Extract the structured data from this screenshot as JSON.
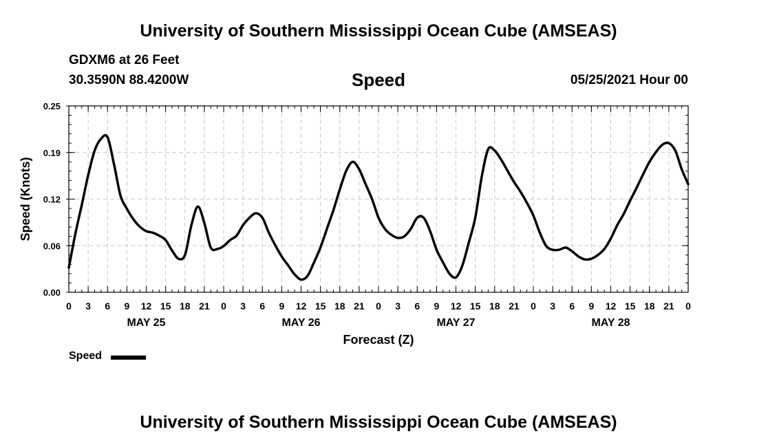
{
  "header": {
    "title_top": "University of Southern Mississippi Ocean Cube (AMSEAS)",
    "station": "GDXM6 at 26 Feet",
    "location": "30.3590N  88.4200W",
    "chart_title": "Speed",
    "datetime": "05/25/2021 Hour 00"
  },
  "footer": {
    "title_bottom": "University of Southern Mississippi Ocean Cube (AMSEAS)"
  },
  "legend": {
    "label": "Speed",
    "color": "#000000"
  },
  "chart_data": {
    "type": "line",
    "title": "Speed",
    "xlabel": "Forecast (Z)",
    "ylabel": "Speed (Knots)",
    "ylim": [
      0,
      0.25
    ],
    "xlim": [
      0,
      96
    ],
    "y_ticks": [
      "0.00",
      "0.06",
      "0.12",
      "0.19",
      "0.25"
    ],
    "y_tick_values": [
      0,
      0.0625,
      0.125,
      0.1875,
      0.25
    ],
    "x_ticks": [
      {
        "hour": 0,
        "label": "0"
      },
      {
        "hour": 3,
        "label": "3"
      },
      {
        "hour": 6,
        "label": "6"
      },
      {
        "hour": 9,
        "label": "9"
      },
      {
        "hour": 12,
        "label": "12"
      },
      {
        "hour": 15,
        "label": "15"
      },
      {
        "hour": 18,
        "label": "18"
      },
      {
        "hour": 21,
        "label": "21"
      },
      {
        "hour": 24,
        "label": "0"
      },
      {
        "hour": 27,
        "label": "3"
      },
      {
        "hour": 30,
        "label": "6"
      },
      {
        "hour": 33,
        "label": "9"
      },
      {
        "hour": 36,
        "label": "12"
      },
      {
        "hour": 39,
        "label": "15"
      },
      {
        "hour": 42,
        "label": "18"
      },
      {
        "hour": 45,
        "label": "21"
      },
      {
        "hour": 48,
        "label": "0"
      },
      {
        "hour": 51,
        "label": "3"
      },
      {
        "hour": 54,
        "label": "6"
      },
      {
        "hour": 57,
        "label": "9"
      },
      {
        "hour": 60,
        "label": "12"
      },
      {
        "hour": 63,
        "label": "15"
      },
      {
        "hour": 66,
        "label": "18"
      },
      {
        "hour": 69,
        "label": "21"
      },
      {
        "hour": 72,
        "label": "0"
      },
      {
        "hour": 75,
        "label": "3"
      },
      {
        "hour": 78,
        "label": "6"
      },
      {
        "hour": 81,
        "label": "9"
      },
      {
        "hour": 84,
        "label": "12"
      },
      {
        "hour": 87,
        "label": "15"
      },
      {
        "hour": 90,
        "label": "18"
      },
      {
        "hour": 93,
        "label": "21"
      },
      {
        "hour": 96,
        "label": "0"
      }
    ],
    "day_labels": [
      {
        "hour": 12,
        "label": "MAY 25"
      },
      {
        "hour": 36,
        "label": "MAY 26"
      },
      {
        "hour": 60,
        "label": "MAY 27"
      },
      {
        "hour": 84,
        "label": "MAY 28"
      }
    ],
    "grid": true,
    "series": [
      {
        "name": "Speed",
        "x": [
          0,
          1,
          2,
          3,
          4,
          5,
          6,
          7,
          8,
          9,
          10,
          11,
          12,
          13,
          14,
          15,
          16,
          17,
          18,
          19,
          20,
          21,
          22,
          23,
          24,
          25,
          26,
          27,
          28,
          29,
          30,
          31,
          32,
          33,
          34,
          35,
          36,
          37,
          38,
          39,
          40,
          41,
          42,
          43,
          44,
          45,
          46,
          47,
          48,
          49,
          50,
          51,
          52,
          53,
          54,
          55,
          56,
          57,
          58,
          59,
          60,
          61,
          62,
          63,
          64,
          65,
          66,
          67,
          68,
          69,
          70,
          71,
          72,
          73,
          74,
          75,
          76,
          77,
          78,
          79,
          80,
          81,
          82,
          83,
          84,
          85,
          86,
          87,
          88,
          89,
          90,
          91,
          92,
          93,
          94,
          95,
          96
        ],
        "values": [
          0.033,
          0.078,
          0.117,
          0.157,
          0.19,
          0.206,
          0.208,
          0.172,
          0.13,
          0.112,
          0.098,
          0.088,
          0.082,
          0.08,
          0.076,
          0.07,
          0.056,
          0.045,
          0.05,
          0.09,
          0.115,
          0.093,
          0.06,
          0.058,
          0.062,
          0.07,
          0.076,
          0.09,
          0.1,
          0.106,
          0.1,
          0.08,
          0.063,
          0.048,
          0.036,
          0.024,
          0.017,
          0.022,
          0.04,
          0.06,
          0.085,
          0.11,
          0.138,
          0.163,
          0.175,
          0.165,
          0.145,
          0.125,
          0.1,
          0.085,
          0.077,
          0.073,
          0.075,
          0.085,
          0.1,
          0.1,
          0.082,
          0.057,
          0.04,
          0.025,
          0.02,
          0.036,
          0.067,
          0.1,
          0.155,
          0.192,
          0.19,
          0.178,
          0.163,
          0.148,
          0.135,
          0.12,
          0.103,
          0.08,
          0.062,
          0.057,
          0.057,
          0.06,
          0.055,
          0.048,
          0.044,
          0.045,
          0.05,
          0.058,
          0.072,
          0.09,
          0.105,
          0.123,
          0.14,
          0.158,
          0.175,
          0.188,
          0.198,
          0.2,
          0.19,
          0.165,
          0.145
        ]
      }
    ]
  }
}
